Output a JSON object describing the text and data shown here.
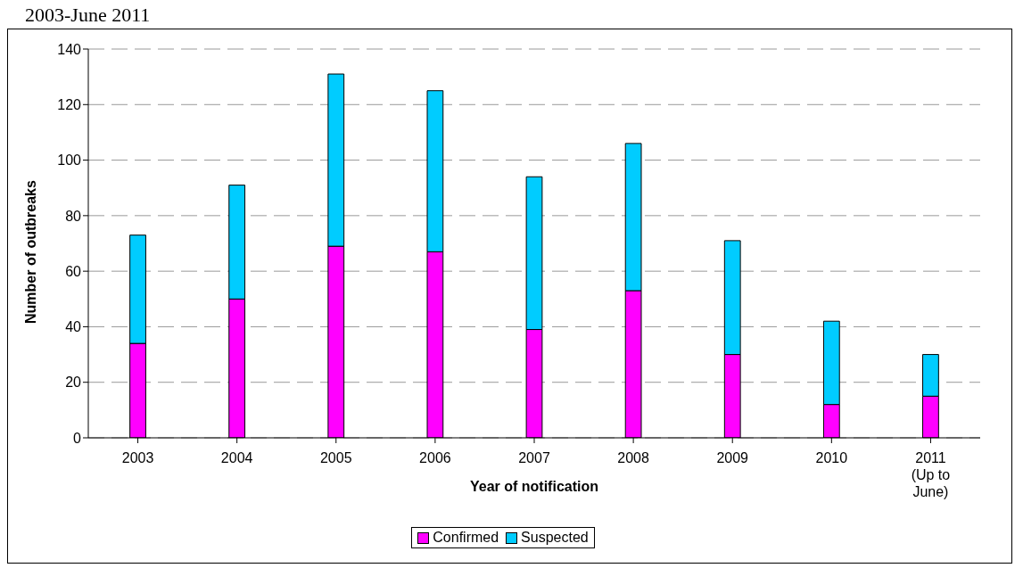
{
  "chart_data": {
    "type": "bar",
    "title": "2003-June 2011",
    "xlabel": "Year of notification",
    "ylabel": "Number of outbreaks",
    "categories": [
      "2003",
      "2004",
      "2005",
      "2006",
      "2007",
      "2008",
      "2009",
      "2010",
      "2011 (Up to June)"
    ],
    "series": [
      {
        "name": "Confirmed",
        "color": "#ff00ff",
        "values": [
          34,
          50,
          69,
          67,
          39,
          53,
          30,
          12,
          15
        ]
      },
      {
        "name": "Suspected",
        "color": "#00ccff",
        "values": [
          39,
          41,
          62,
          58,
          55,
          53,
          41,
          30,
          15
        ]
      }
    ],
    "stacked": true,
    "ylim": [
      0,
      140
    ],
    "yticks": [
      0,
      20,
      40,
      60,
      80,
      100,
      120,
      140
    ],
    "grid": "y",
    "legend": "bottom"
  }
}
